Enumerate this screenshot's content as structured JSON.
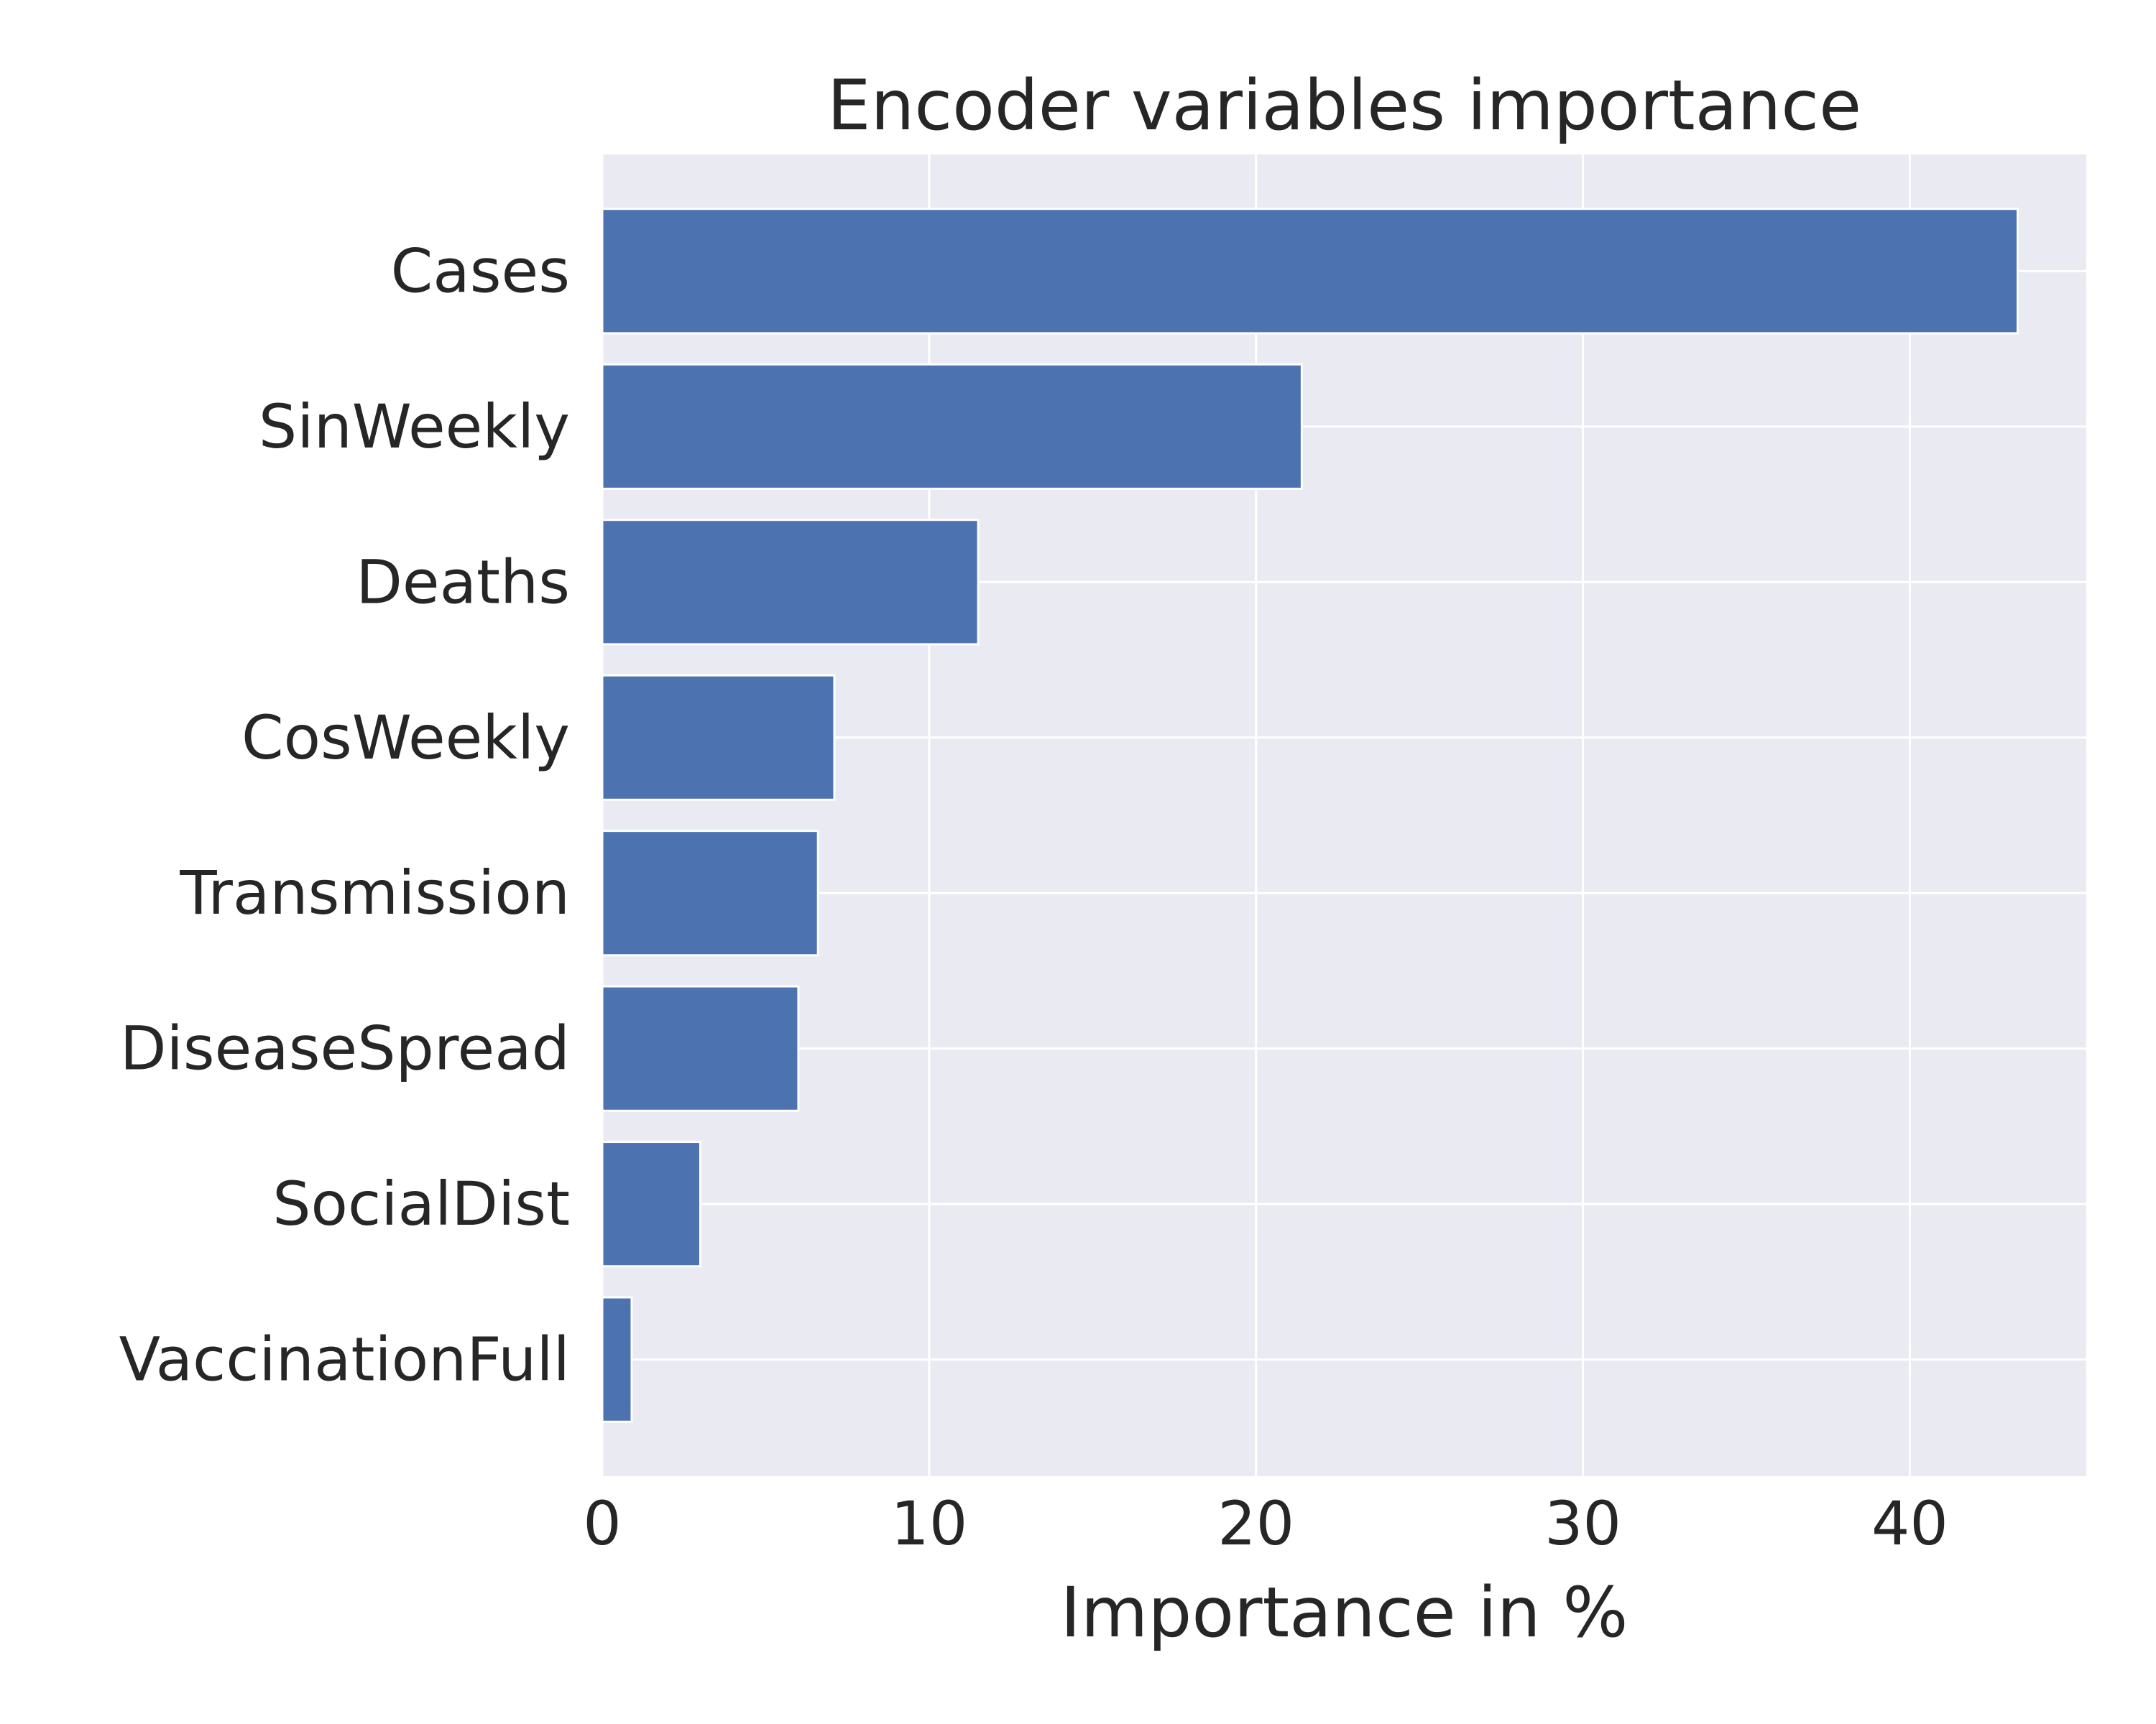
{
  "chart_data": {
    "type": "bar",
    "orientation": "horizontal",
    "title": "Encoder variables importance",
    "xlabel": "Importance in %",
    "ylabel": "",
    "categories": [
      "Cases",
      "SinWeekly",
      "Deaths",
      "CosWeekly",
      "Transmission",
      "DiseaseSpread",
      "SocialDist",
      "VaccinationFull"
    ],
    "values": [
      43.3,
      21.4,
      11.5,
      7.1,
      6.6,
      6.0,
      3.0,
      0.9
    ],
    "xlim": [
      0,
      45.4
    ],
    "xticks": [
      0,
      10,
      20,
      30,
      40
    ],
    "grid": true,
    "legend": "none",
    "colors": {
      "bar": "#4c72b0",
      "plot_background": "#eaeaf2",
      "grid": "#ffffff",
      "text": "#262626"
    }
  }
}
